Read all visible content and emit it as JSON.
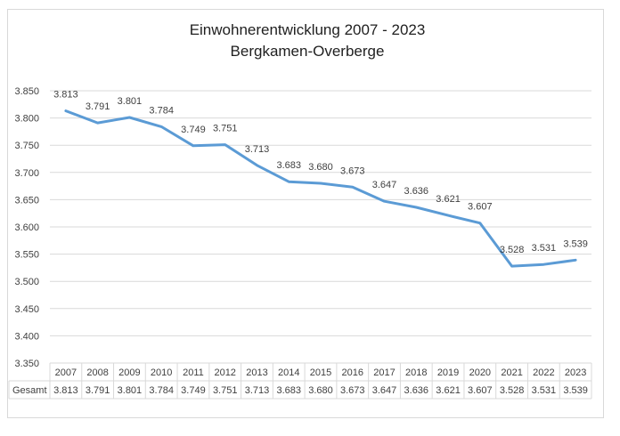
{
  "chart_data": {
    "type": "line",
    "title": "Einwohnerentwicklung 2007 - 2023",
    "subtitle": "Bergkamen-Overberge",
    "categories": [
      "2007",
      "2008",
      "2009",
      "2010",
      "2011",
      "2012",
      "2013",
      "2014",
      "2015",
      "2016",
      "2017",
      "2018",
      "2019",
      "2020",
      "2021",
      "2022",
      "2023"
    ],
    "series": [
      {
        "name": "Gesamt",
        "values": [
          3813,
          3791,
          3801,
          3784,
          3749,
          3751,
          3713,
          3683,
          3680,
          3673,
          3647,
          3636,
          3621,
          3607,
          3528,
          3531,
          3539
        ],
        "labels": [
          "3.813",
          "3.791",
          "3.801",
          "3.784",
          "3.749",
          "3.751",
          "3.713",
          "3.683",
          "3.680",
          "3.673",
          "3.647",
          "3.636",
          "3.621",
          "3.607",
          "3.528",
          "3.531",
          "3.539"
        ],
        "color": "#5b9bd5"
      }
    ],
    "ylim": [
      3350,
      3850
    ],
    "yticks": [
      3850,
      3800,
      3750,
      3700,
      3650,
      3600,
      3550,
      3500,
      3450,
      3400,
      3350
    ],
    "ytick_labels": [
      "3.850",
      "3.800",
      "3.750",
      "3.700",
      "3.650",
      "3.600",
      "3.550",
      "3.500",
      "3.450",
      "3.400",
      "3.350"
    ],
    "grid": true,
    "data_table": true,
    "table_row_label": "Gesamt",
    "gridline_color": "#d9d9d9"
  }
}
